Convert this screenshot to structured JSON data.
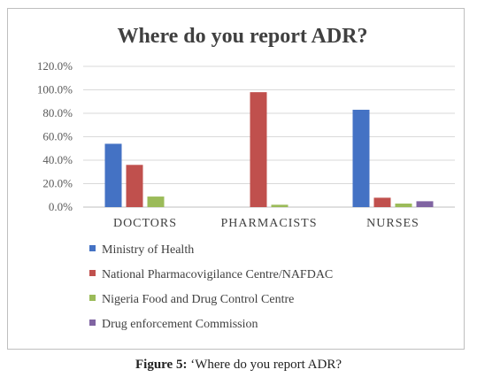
{
  "caption": {
    "label": "Figure 5:",
    "text": "‘Where do you report ADR?"
  },
  "chart_data": {
    "type": "bar",
    "title": "Where do you report ADR?",
    "xlabel": "",
    "ylabel": "",
    "categories": [
      "DOCTORS",
      "PHARMACISTS",
      "NURSES"
    ],
    "ylim": [
      0,
      120
    ],
    "yticks": [
      "0.0%",
      "20.0%",
      "40.0%",
      "60.0%",
      "80.0%",
      "100.0%",
      "120.0%"
    ],
    "ytick_values": [
      0,
      20,
      40,
      60,
      80,
      100,
      120
    ],
    "grid": true,
    "legend_position": "bottom",
    "series": [
      {
        "name": "Ministry of Health",
        "color": "#4472C4",
        "values": [
          54,
          0,
          83
        ]
      },
      {
        "name": "National Pharmacovigilance Centre/NAFDAC",
        "color": "#C0504D",
        "values": [
          36,
          98,
          8
        ]
      },
      {
        "name": "Nigeria Food and Drug Control Centre",
        "color": "#9BBB59",
        "values": [
          9,
          2,
          3
        ]
      },
      {
        "name": "Drug enforcement Commission",
        "color": "#8064A2",
        "values": [
          0,
          0,
          5
        ]
      }
    ]
  }
}
